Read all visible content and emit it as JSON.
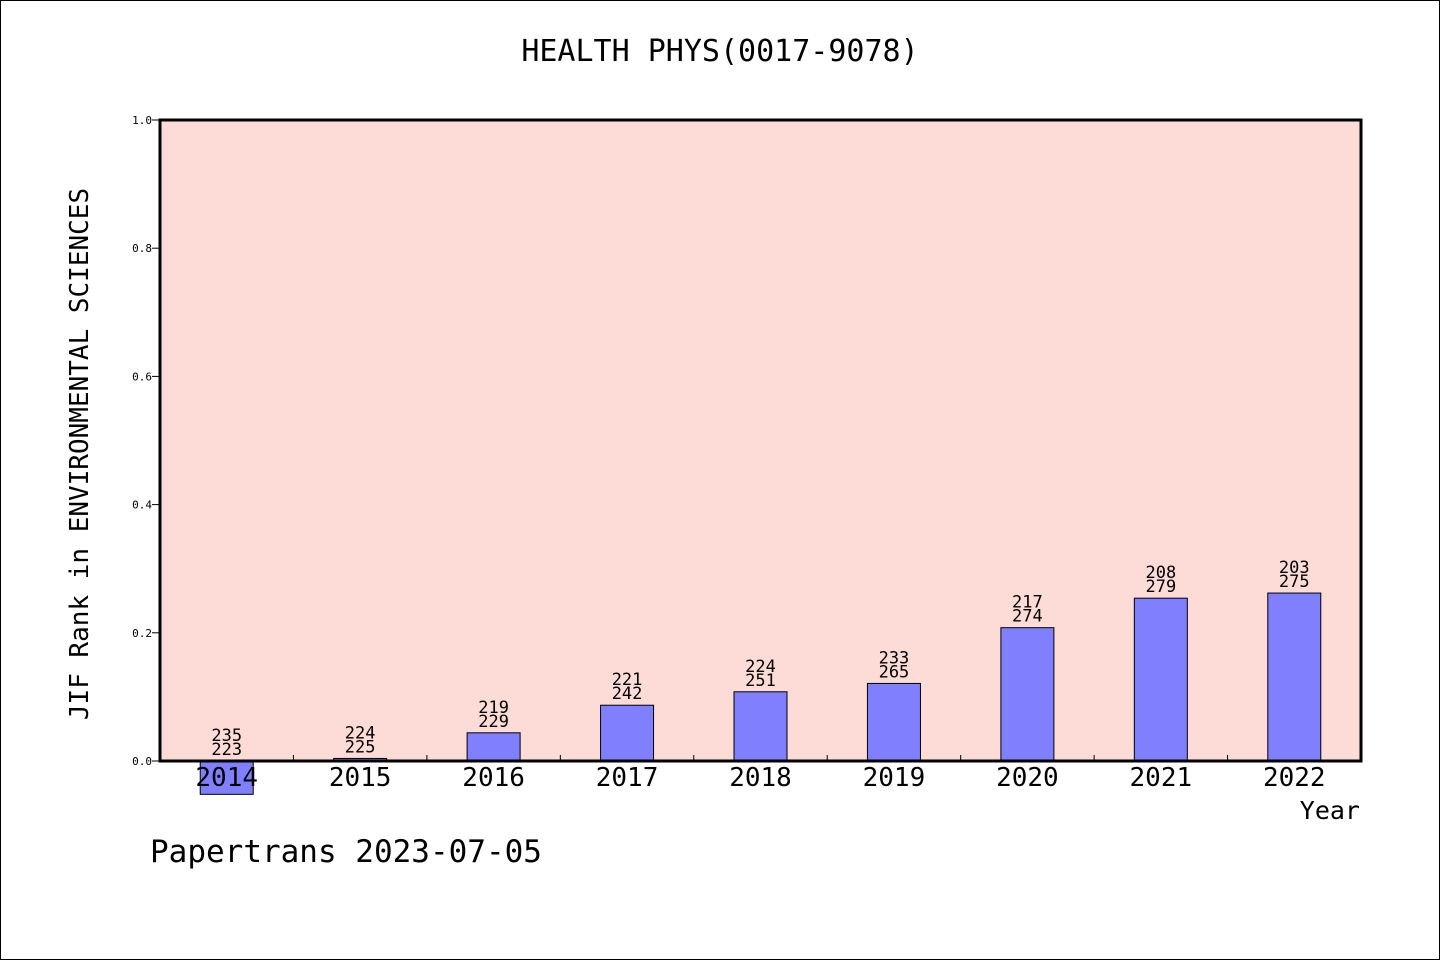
{
  "chart_data": {
    "type": "bar",
    "title": "HEALTH PHYS(0017-9078)",
    "xlabel": "Year",
    "ylabel": "JIF Rank in ENVIRONMENTAL SCIENCES",
    "categories": [
      "2014",
      "2015",
      "2016",
      "2017",
      "2018",
      "2019",
      "2020",
      "2021",
      "2022"
    ],
    "values": [
      -0.052,
      0.004,
      0.044,
      0.087,
      0.108,
      0.121,
      0.208,
      0.254,
      0.262
    ],
    "bar_labels_top": [
      "235",
      "224",
      "219",
      "221",
      "224",
      "233",
      "217",
      "208",
      "203"
    ],
    "bar_labels_bottom": [
      "223",
      "225",
      "229",
      "242",
      "251",
      "265",
      "274",
      "279",
      "275"
    ],
    "ylim": [
      0.0,
      1.0
    ],
    "yticks": [
      "0.0",
      "0.2",
      "0.4",
      "0.6",
      "0.8",
      "1.0"
    ],
    "grid": false,
    "legend": "none",
    "colors": {
      "plot_background": "#fddbd7",
      "bar_fill": "#8080ff",
      "bar_edge": "#000000"
    }
  },
  "footer": {
    "credit": "Papertrans 2023-07-05"
  }
}
